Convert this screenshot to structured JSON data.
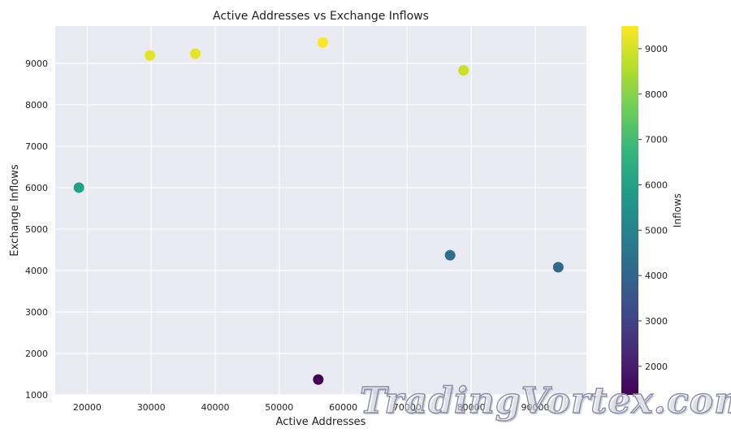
{
  "chart_data": {
    "type": "scatter",
    "title": "Active Addresses vs Exchange Inflows",
    "xlabel": "Active Addresses",
    "ylabel": "Exchange Inflows",
    "xlim": [
      15000,
      98000
    ],
    "ylim": [
      1000,
      9900
    ],
    "x_ticks": [
      20000,
      30000,
      40000,
      50000,
      60000,
      70000,
      80000,
      90000
    ],
    "y_ticks": [
      1000,
      2000,
      3000,
      4000,
      5000,
      6000,
      7000,
      8000,
      9000
    ],
    "grid": true,
    "points": [
      {
        "x": 18700,
        "y": 6000
      },
      {
        "x": 29800,
        "y": 9190
      },
      {
        "x": 36900,
        "y": 9230
      },
      {
        "x": 56800,
        "y": 9500
      },
      {
        "x": 78800,
        "y": 8830
      },
      {
        "x": 56100,
        "y": 1370
      },
      {
        "x": 76700,
        "y": 4370
      },
      {
        "x": 93600,
        "y": 4080
      }
    ],
    "colorbar": {
      "label": "Inflows",
      "colormap": "viridis",
      "range": [
        1370,
        9500
      ],
      "ticks": [
        2000,
        3000,
        4000,
        5000,
        6000,
        7000,
        8000,
        9000
      ]
    }
  },
  "watermark": "TradingVortex.com",
  "colors": {
    "plot_bg": "#eaeaf2",
    "grid": "#ffffff"
  }
}
